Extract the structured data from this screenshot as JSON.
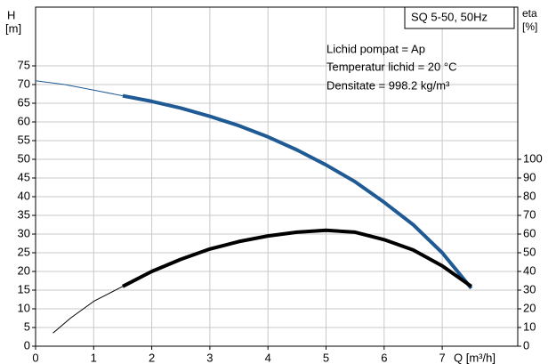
{
  "chart_data": {
    "type": "line",
    "y_label": "H",
    "y_unit": "[m]",
    "y2_label": "eta",
    "y2_unit": "[%]",
    "x_label": "Q [m³/h]",
    "info_title": "SQ 5-50, 50Hz",
    "info_lines": [
      "Lichid pompat = Ap",
      "Temperatur   lichid = 20 °C",
      "Densitate = 998.2 kg/m³"
    ],
    "xlim": [
      0,
      8.3
    ],
    "xticks": [
      0,
      1,
      2,
      3,
      4,
      5,
      6,
      7
    ],
    "ylim": [
      0,
      90
    ],
    "yticks": [
      0,
      5,
      10,
      15,
      20,
      25,
      30,
      35,
      40,
      45,
      50,
      55,
      60,
      65,
      70,
      75
    ],
    "y2lim": [
      0,
      180
    ],
    "y2ticks": [
      0,
      10,
      20,
      30,
      40,
      50,
      60,
      70,
      80,
      90,
      100
    ],
    "grid": true,
    "series": [
      {
        "color": "#1f5a94",
        "width": 1,
        "axis": "y",
        "x": [
          0,
          0.5,
          1,
          1.5
        ],
        "values": [
          71,
          70,
          68.5,
          67
        ]
      },
      {
        "color": "#1f5a94",
        "width": 4,
        "axis": "y",
        "x": [
          1.5,
          2,
          2.5,
          3,
          3.5,
          4,
          4.5,
          5,
          5.5,
          6,
          6.5,
          7,
          7.5
        ],
        "values": [
          67,
          65.5,
          63.7,
          61.5,
          59,
          56,
          52.5,
          48.5,
          44,
          38.5,
          32.5,
          25,
          15.5
        ]
      },
      {
        "color": "#000000",
        "width": 1,
        "axis": "y2",
        "x": [
          0.3,
          0.6,
          1,
          1.5
        ],
        "values": [
          7,
          15,
          24,
          32
        ]
      },
      {
        "color": "#000000",
        "width": 4,
        "axis": "y2",
        "x": [
          1.5,
          2,
          2.5,
          3,
          3.5,
          4,
          4.5,
          5,
          5.5,
          6,
          6.5,
          7,
          7.5
        ],
        "values": [
          32,
          40,
          46.5,
          52,
          56,
          59,
          61,
          62,
          61,
          57,
          51.5,
          43,
          32
        ]
      }
    ]
  }
}
